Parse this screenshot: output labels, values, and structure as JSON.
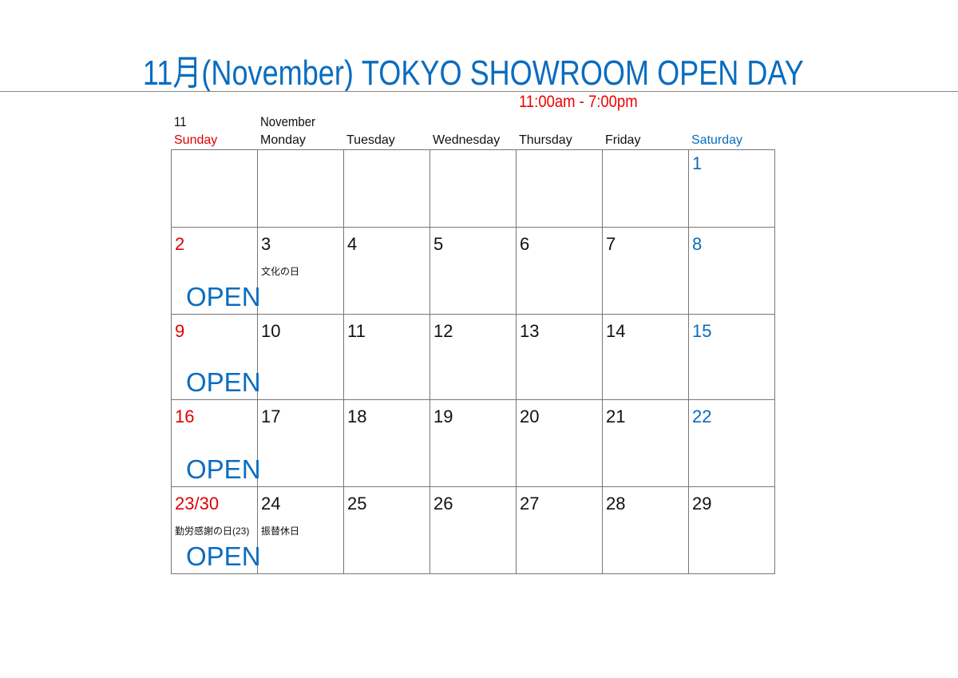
{
  "title": "11月(November) TOKYO SHOWROOM OPEN DAY",
  "hours": "11:00am - 7:00pm",
  "month_number": "11",
  "month_name": "November",
  "colors": {
    "sunday": "#e00000",
    "saturday": "#0a6cbf",
    "weekday": "#111111",
    "open": "#0a6cbf"
  },
  "weekdays": [
    {
      "label": "Sunday",
      "color": "#e00000"
    },
    {
      "label": "Monday",
      "color": "#111111"
    },
    {
      "label": "Tuesday",
      "color": "#111111"
    },
    {
      "label": "Wednesday",
      "color": "#111111"
    },
    {
      "label": "Thursday",
      "color": "#111111"
    },
    {
      "label": "Friday",
      "color": "#111111"
    },
    {
      "label": "Saturday",
      "color": "#0a6cbf"
    }
  ],
  "weeks": [
    [
      {
        "day": ""
      },
      {
        "day": ""
      },
      {
        "day": ""
      },
      {
        "day": ""
      },
      {
        "day": ""
      },
      {
        "day": ""
      },
      {
        "day": "1",
        "color": "#0a6cbf"
      }
    ],
    [
      {
        "day": "2",
        "color": "#e00000",
        "open": "OPEN"
      },
      {
        "day": "3",
        "note": "文化の日"
      },
      {
        "day": "4"
      },
      {
        "day": "5"
      },
      {
        "day": "6"
      },
      {
        "day": "7"
      },
      {
        "day": "8",
        "color": "#0a6cbf"
      }
    ],
    [
      {
        "day": "9",
        "color": "#e00000",
        "open": "OPEN"
      },
      {
        "day": "10"
      },
      {
        "day": "11"
      },
      {
        "day": "12"
      },
      {
        "day": "13"
      },
      {
        "day": "14"
      },
      {
        "day": "15",
        "color": "#0a6cbf"
      }
    ],
    [
      {
        "day": "16",
        "color": "#e00000",
        "open": "OPEN"
      },
      {
        "day": "17"
      },
      {
        "day": "18"
      },
      {
        "day": "19"
      },
      {
        "day": "20"
      },
      {
        "day": "21"
      },
      {
        "day": "22",
        "color": "#0a6cbf"
      }
    ],
    [
      {
        "day": "23/30",
        "color": "#e00000",
        "note": "勤労感謝の日(23)",
        "open": "OPEN"
      },
      {
        "day": "24",
        "note": "振替休日"
      },
      {
        "day": "25"
      },
      {
        "day": "26"
      },
      {
        "day": "27"
      },
      {
        "day": "28"
      },
      {
        "day": "29"
      }
    ]
  ]
}
